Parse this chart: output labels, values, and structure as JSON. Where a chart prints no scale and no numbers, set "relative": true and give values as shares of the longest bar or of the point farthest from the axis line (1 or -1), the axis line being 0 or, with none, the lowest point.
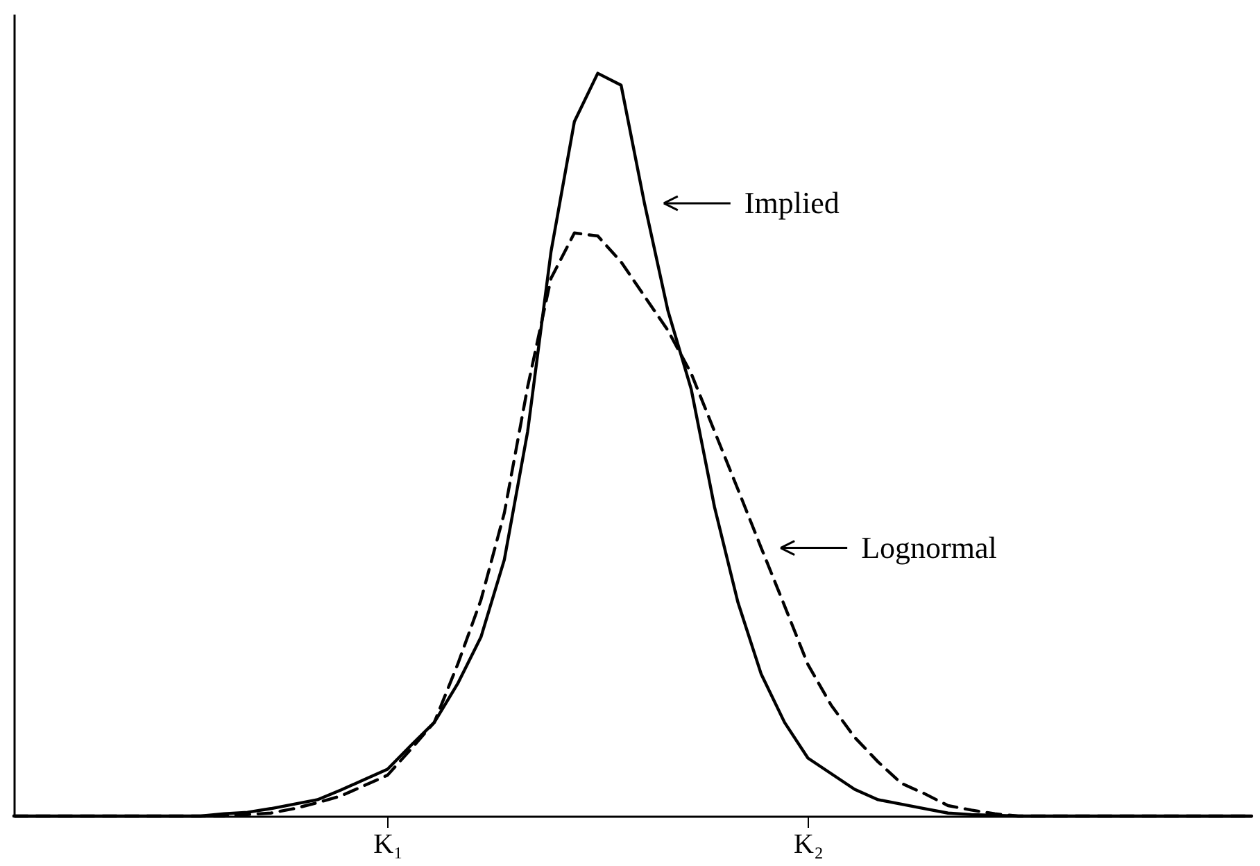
{
  "chart_data": {
    "type": "line",
    "relative": true,
    "categories": [
      null,
      null,
      null,
      null,
      null,
      null,
      null,
      null,
      null,
      null,
      null,
      null,
      null,
      null,
      null,
      null,
      "K₁",
      null,
      null,
      null,
      null,
      null,
      null,
      null,
      null,
      null,
      null,
      null,
      null,
      null,
      null,
      null,
      null,
      null,
      "K₂",
      null,
      null,
      null,
      null,
      null,
      null,
      null,
      null,
      null,
      null,
      null,
      null,
      null,
      null,
      null,
      null,
      null,
      null,
      null
    ],
    "legend": false,
    "grid": false,
    "marker": "none",
    "series": [
      {
        "color": "#000000",
        "line_style": "solid",
        "values": [
          0,
          0,
          0,
          0,
          0,
          0,
          0,
          0,
          0,
          0.003,
          0.005,
          0.01,
          0.016,
          0.022,
          0.035,
          0.049,
          0.063,
          0.095,
          0.126,
          0.178,
          0.241,
          0.345,
          0.518,
          0.76,
          0.935,
          1,
          0.984,
          0.825,
          0.681,
          0.575,
          0.416,
          0.288,
          0.191,
          0.126,
          0.078,
          0.057,
          0.036,
          0.022,
          0.016,
          0.01,
          0.004,
          0.002,
          0.001,
          0,
          0,
          0,
          0,
          0,
          0,
          0,
          0,
          0,
          0,
          0
        ]
      },
      {
        "color": "#000000",
        "line_style": "dashed",
        "values": [
          0,
          0,
          0,
          0,
          0,
          0,
          0,
          0,
          0,
          0,
          0.002,
          0.004,
          0.01,
          0.018,
          0.027,
          0.041,
          0.055,
          0.09,
          0.126,
          0.204,
          0.291,
          0.408,
          0.578,
          0.724,
          0.785,
          0.781,
          0.746,
          0.7,
          0.654,
          0.596,
          0.518,
          0.44,
          0.361,
          0.283,
          0.204,
          0.149,
          0.106,
          0.073,
          0.044,
          0.03,
          0.014,
          0.008,
          0.003,
          0,
          0,
          0,
          0,
          0,
          0,
          0,
          0,
          0,
          0,
          0
        ]
      }
    ],
    "annotations": [
      "Implied",
      "Lognormal"
    ]
  }
}
